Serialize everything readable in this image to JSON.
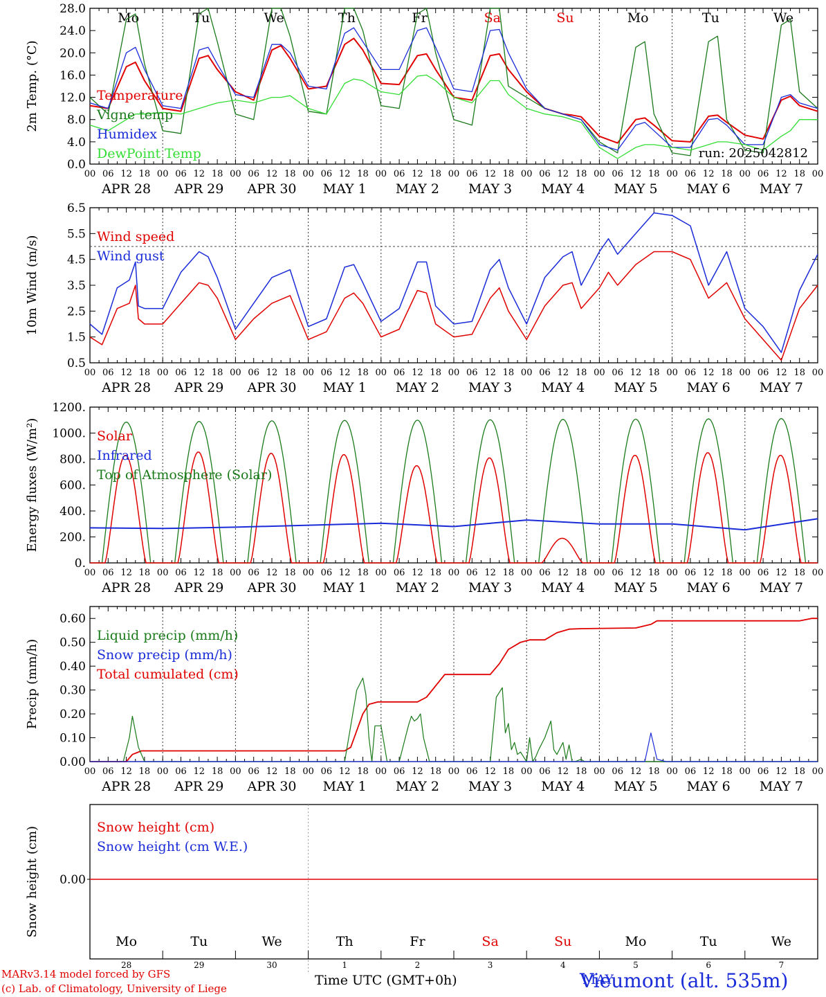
{
  "footer": {
    "credit_line1": "MARv3.14 model forced by GFS",
    "credit_line2": "(c) Lab. of Climatology, University of Liege",
    "xaxis_title": "Time UTC (GMT+0h)",
    "station": "Vieumont (alt. 535m)",
    "month": "MAY"
  },
  "colors": {
    "red": "#e00000",
    "blue": "#1a2bd8",
    "green": "#1a7a1a",
    "light_green": "#33dd33",
    "black": "#000000"
  },
  "day_names": [
    "Mo",
    "Tu",
    "We",
    "Th",
    "Fr",
    "Sa",
    "Su",
    "Mo",
    "Tu",
    "We"
  ],
  "day_name_colors": [
    "#000000",
    "#000000",
    "#000000",
    "#000000",
    "#000000",
    "#e00000",
    "#e00000",
    "#000000",
    "#000000",
    "#000000"
  ],
  "dates": [
    "APR 28",
    "APR 29",
    "APR 30",
    "MAY  1",
    "MAY  2",
    "MAY  3",
    "MAY  4",
    "MAY  5",
    "MAY  6",
    "MAY  7"
  ],
  "day_numbers": [
    "28",
    "29",
    "30",
    "1",
    "2",
    "3",
    "4",
    "5",
    "6",
    "7"
  ],
  "hour_ticks": [
    "00",
    "06",
    "12",
    "18"
  ],
  "hour_end": "00",
  "chart_data": [
    {
      "id": "temperature",
      "type": "line",
      "ylabel": "2m Temp. (°C)",
      "ylim": [
        0,
        28
      ],
      "yticks": [
        "0.0",
        "4.0",
        "8.0",
        "12.0",
        "16.0",
        "20.0",
        "24.0",
        "28.0"
      ],
      "annotation": "run: 2025042812",
      "legend": [
        "Temperature",
        "Vigne temp",
        "Humidex",
        "DewPoint Temp"
      ],
      "x_hours": [
        0,
        6,
        12,
        15,
        18,
        24,
        30,
        36,
        39,
        42,
        48,
        54,
        60,
        63,
        66,
        72,
        78,
        84,
        87,
        90,
        96,
        102,
        108,
        111,
        114,
        120,
        126,
        132,
        135,
        138,
        144,
        150,
        156,
        159,
        162,
        168,
        174,
        180,
        183,
        186,
        192,
        198,
        204,
        207,
        210,
        216,
        222,
        228,
        231,
        234,
        240
      ],
      "series": [
        {
          "name": "Temperature",
          "color": "#e00000",
          "values": [
            10.5,
            10,
            17.5,
            18.3,
            15,
            10,
            9.5,
            19,
            19.5,
            17,
            13,
            11.5,
            20.5,
            21.3,
            19,
            13.5,
            14,
            21.5,
            22.6,
            20.5,
            14.5,
            14.3,
            19.5,
            19.8,
            17,
            12,
            11.5,
            19.5,
            19.8,
            17,
            13,
            10,
            9,
            8.8,
            8.5,
            5,
            3.8,
            8,
            8.3,
            7,
            4.2,
            4,
            8.6,
            8.8,
            7.5,
            5.2,
            4.5,
            11.5,
            12.2,
            10.5,
            9.5
          ]
        },
        {
          "name": "Vigne temp",
          "color": "#1a7a1a",
          "values": [
            12,
            9,
            26,
            27,
            18,
            6,
            5.5,
            27,
            28,
            22,
            9,
            8,
            28,
            28,
            23,
            9.5,
            9,
            28,
            28,
            24,
            10.5,
            10,
            27,
            28,
            20,
            8,
            7,
            28,
            28,
            14,
            12,
            10,
            9,
            8.5,
            8,
            4,
            2,
            21,
            22,
            9,
            2,
            1.5,
            22,
            23,
            8,
            2.5,
            2,
            25,
            26,
            13,
            10
          ]
        },
        {
          "name": "Humidex",
          "color": "#1a2bd8",
          "values": [
            11,
            10,
            20,
            21,
            17,
            10.5,
            10,
            20.5,
            21,
            18,
            12.5,
            12,
            21.5,
            21.5,
            20,
            14,
            13.5,
            23.5,
            24.5,
            22,
            17,
            17,
            24,
            24.5,
            21,
            13.5,
            13,
            24,
            24.2,
            20,
            13.5,
            10,
            9,
            8.5,
            8,
            3.5,
            2.5,
            7,
            7.5,
            6,
            3,
            3,
            8,
            8.2,
            7,
            3.5,
            3.5,
            12,
            12.5,
            11,
            10
          ]
        },
        {
          "name": "DewPoint Temp",
          "color": "#33dd33",
          "values": [
            7,
            6,
            8,
            9,
            9,
            9.3,
            9,
            10,
            10.5,
            11,
            11.5,
            11,
            12,
            12,
            12.3,
            10,
            9,
            14.5,
            15.3,
            15,
            13,
            12.5,
            15.8,
            16,
            15,
            12,
            11,
            15,
            15,
            12.5,
            10,
            9,
            8.5,
            8,
            7.5,
            3,
            1,
            3,
            3.5,
            3.5,
            3,
            2.5,
            3.5,
            4,
            4,
            3.5,
            2.5,
            5,
            6,
            8,
            8
          ]
        }
      ]
    },
    {
      "id": "wind",
      "type": "line",
      "ylabel": "10m Wind (m/s)",
      "ylim": [
        0.5,
        6.5
      ],
      "yticks": [
        "0.5",
        "1.5",
        "2.5",
        "3.5",
        "4.5",
        "5.5",
        "6.5"
      ],
      "reference_line": 5.0,
      "legend": [
        "Wind speed",
        "Wind gust"
      ],
      "x_hours": [
        0,
        4,
        9,
        13,
        15,
        16,
        18,
        24,
        30,
        36,
        39,
        42,
        48,
        54,
        60,
        66,
        72,
        78,
        84,
        87,
        90,
        96,
        102,
        108,
        111,
        114,
        120,
        126,
        132,
        135,
        138,
        144,
        150,
        156,
        159,
        162,
        168,
        171,
        174,
        180,
        186,
        192,
        198,
        204,
        210,
        216,
        222,
        228,
        234,
        240
      ],
      "series": [
        {
          "name": "Wind speed",
          "color": "#e00000",
          "values": [
            1.5,
            1.2,
            2.6,
            2.8,
            3.5,
            2.2,
            2.0,
            2.0,
            2.8,
            3.6,
            3.5,
            3.0,
            1.4,
            2.2,
            2.8,
            3.1,
            1.4,
            1.7,
            3.0,
            3.2,
            2.8,
            1.5,
            1.8,
            3.3,
            3.2,
            2.0,
            1.5,
            1.6,
            3.0,
            3.4,
            2.5,
            1.4,
            2.7,
            3.5,
            3.6,
            2.6,
            3.4,
            4.0,
            3.5,
            4.3,
            4.8,
            4.8,
            4.5,
            3.0,
            3.6,
            2.2,
            1.4,
            0.6,
            2.6,
            3.5
          ]
        },
        {
          "name": "Wind gust",
          "color": "#1a2bd8",
          "values": [
            2.0,
            1.6,
            3.4,
            3.7,
            4.4,
            2.7,
            2.6,
            2.6,
            4.0,
            4.8,
            4.6,
            3.8,
            1.8,
            2.8,
            3.8,
            4.1,
            1.9,
            2.2,
            4.2,
            4.3,
            3.6,
            2.1,
            2.6,
            4.4,
            4.4,
            2.7,
            2.0,
            2.1,
            4.1,
            4.5,
            3.4,
            2.0,
            3.8,
            4.6,
            4.8,
            3.5,
            4.8,
            5.3,
            4.7,
            5.5,
            6.3,
            6.2,
            5.8,
            3.5,
            4.8,
            2.6,
            1.9,
            0.9,
            3.3,
            4.7
          ]
        }
      ]
    },
    {
      "id": "energy",
      "type": "line",
      "ylabel": "Energy fluxes (W/m²)",
      "ylim": [
        0,
        1200
      ],
      "yticks": [
        "0.",
        "200.",
        "400.",
        "600.",
        "800.",
        "1000.",
        "1200."
      ],
      "legend": [
        "Solar",
        "Infrared",
        "Top of Atmosphere (Solar)"
      ],
      "toa_peak": [
        1085,
        1090,
        1095,
        1098,
        1100,
        1103,
        1106,
        1108,
        1110,
        1112
      ],
      "solar_peak": [
        830,
        855,
        845,
        835,
        750,
        810,
        190,
        830,
        850,
        830
      ],
      "x_hours": [
        0,
        24,
        48,
        72,
        96,
        120,
        144,
        168,
        192,
        216,
        240
      ],
      "series": [
        {
          "name": "Infrared",
          "color": "#1a2bd8",
          "values": [
            270,
            265,
            275,
            290,
            305,
            280,
            330,
            300,
            300,
            255,
            340
          ]
        }
      ]
    },
    {
      "id": "precip",
      "type": "line",
      "ylabel": "Precip (mm/h)",
      "ylim": [
        0,
        0.65
      ],
      "yticks": [
        "0.00",
        "0.10",
        "0.20",
        "0.30",
        "0.40",
        "0.50",
        "0.60"
      ],
      "legend": [
        "Liquid precip (mm/h)",
        "Snow precip (mm/h)",
        "Total cumulated (cm)"
      ],
      "series": [
        {
          "name": "Total cumulated (cm)",
          "color": "#e00000",
          "x_hours": [
            0,
            12,
            14,
            17,
            20,
            84,
            86,
            90,
            92,
            95,
            108,
            111,
            117,
            120,
            132,
            135,
            138,
            142,
            145,
            150,
            154,
            158,
            162,
            180,
            185,
            187,
            234,
            238,
            240
          ],
          "values": [
            0,
            0,
            0.03,
            0.045,
            0.045,
            0.045,
            0.06,
            0.2,
            0.24,
            0.25,
            0.25,
            0.27,
            0.365,
            0.365,
            0.365,
            0.41,
            0.47,
            0.5,
            0.51,
            0.51,
            0.54,
            0.555,
            0.557,
            0.56,
            0.575,
            0.59,
            0.59,
            0.6,
            0.6
          ]
        },
        {
          "name": "Liquid precip (mm/h)",
          "color": "#1a7a1a",
          "x_hours": [
            0,
            11,
            13,
            14,
            16,
            18,
            84,
            86,
            88,
            90,
            91,
            92,
            93,
            94,
            96,
            98,
            99,
            100,
            102,
            105,
            106,
            107,
            108,
            109,
            110,
            111,
            112,
            132,
            134,
            136,
            137,
            138,
            139,
            140,
            141,
            142,
            144,
            145,
            146,
            147,
            148,
            150,
            152,
            153,
            154,
            156,
            157,
            158,
            159,
            160,
            162,
            163,
            164,
            166,
            240
          ],
          "values": [
            0,
            0,
            0.1,
            0.19,
            0.06,
            0,
            0,
            0.15,
            0.3,
            0.35,
            0.28,
            0.1,
            0,
            0.15,
            0.15,
            0,
            0,
            0,
            0,
            0.15,
            0.19,
            0.17,
            0.18,
            0.2,
            0.1,
            0.05,
            0,
            0,
            0.27,
            0.31,
            0.12,
            0.16,
            0.05,
            0.08,
            0.03,
            0.04,
            0,
            0.1,
            0,
            0.02,
            0.05,
            0.1,
            0.17,
            0.05,
            0.03,
            0.08,
            0.01,
            0.07,
            0,
            0,
            0.01,
            0,
            0,
            0,
            0
          ]
        },
        {
          "name": "Snow precip (mm/h)",
          "color": "#1a2bd8",
          "x_hours": [
            0,
            183,
            185,
            187,
            190,
            240
          ],
          "values": [
            0,
            0,
            0.12,
            0.01,
            0,
            0
          ]
        }
      ]
    },
    {
      "id": "snow",
      "type": "line",
      "ylabel": "Snow height (cm)",
      "yticks": [
        "0.00"
      ],
      "legend": [
        "Snow height (cm)",
        "Snow height (cm W.E.)"
      ],
      "x_hours": [
        0,
        240
      ],
      "series": [
        {
          "name": "Snow height (cm)",
          "color": "#e00000",
          "values": [
            0,
            0
          ]
        }
      ]
    }
  ]
}
